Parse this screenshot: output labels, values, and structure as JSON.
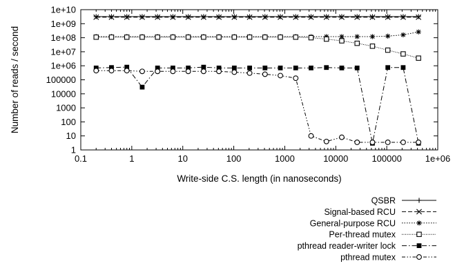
{
  "chart_data": {
    "type": "line",
    "xlabel": "Write-side C.S. length (in nanoseconds)",
    "ylabel": "Number of reads / second",
    "x_scale": "log",
    "y_scale": "log",
    "xlim": [
      0.1,
      1000000
    ],
    "ylim": [
      1,
      10000000000
    ],
    "grid": false,
    "legend_placement": "bottom-right, below plot",
    "x_tick_labels": [
      "0.1",
      "1",
      "10",
      "100",
      "1000",
      "10000",
      "100000",
      "1e+06"
    ],
    "y_tick_labels": [
      "1",
      "10",
      "100",
      "1000",
      "10000",
      "100000",
      "1e+06",
      "1e+07",
      "1e+08",
      "1e+09",
      "1e+10"
    ],
    "x": [
      0.2,
      0.4,
      0.8,
      1.6,
      3.2,
      6.4,
      12.8,
      25.6,
      51.2,
      102.4,
      204.8,
      409.6,
      819.2,
      1638.4,
      3276.8,
      6553.6,
      13107.2,
      26214.4,
      52428.8,
      104857.6,
      209715.2,
      419430.4
    ],
    "series": [
      {
        "name": "QSBR",
        "marker": "plus",
        "dash": "solid",
        "values": [
          3200000000,
          3200000000,
          3200000000,
          3200000000,
          3200000000,
          3200000000,
          3200000000,
          3200000000,
          3200000000,
          3200000000,
          3200000000,
          3200000000,
          3200000000,
          3200000000,
          3200000000,
          3200000000,
          3200000000,
          3200000000,
          3200000000,
          3200000000,
          3200000000,
          3200000000
        ]
      },
      {
        "name": "Signal-based RCU",
        "marker": "cross",
        "dash": "dashed",
        "values": [
          2900000000,
          2900000000,
          2900000000,
          2900000000,
          2900000000,
          2900000000,
          2900000000,
          2900000000,
          2900000000,
          2900000000,
          2900000000,
          2900000000,
          2900000000,
          2900000000,
          2900000000,
          2900000000,
          2900000000,
          2900000000,
          2900000000,
          2900000000,
          2900000000,
          2900000000
        ]
      },
      {
        "name": "General-purpose RCU",
        "marker": "star",
        "dash": "dotted",
        "values": [
          120000000,
          120000000,
          120000000,
          120000000,
          120000000,
          120000000,
          120000000,
          120000000,
          120000000,
          120000000,
          120000000,
          120000000,
          120000000,
          120000000,
          120000000,
          120000000,
          120000000,
          120000000,
          120000000,
          130000000,
          160000000,
          260000000
        ]
      },
      {
        "name": "Per-thread mutex",
        "marker": "square-open",
        "dash": "fine-dotted",
        "values": [
          110000000,
          110000000,
          110000000,
          110000000,
          110000000,
          110000000,
          110000000,
          110000000,
          110000000,
          110000000,
          110000000,
          110000000,
          110000000,
          110000000,
          100000000,
          80000000,
          60000000,
          40000000,
          25000000,
          13000000,
          7000000,
          3500000
        ]
      },
      {
        "name": "pthread reader-writer lock",
        "marker": "square-filled",
        "dash": "dash-dot",
        "values": [
          700000,
          750000,
          800000,
          30000,
          700000,
          700000,
          700000,
          800000,
          700000,
          700000,
          700000,
          700000,
          700000,
          700000,
          700000,
          750000,
          700000,
          700000,
          3,
          750000,
          750000,
          3
        ]
      },
      {
        "name": "pthread mutex",
        "marker": "circle-open",
        "dash": "dash-dot-dot",
        "values": [
          450000,
          450000,
          450000,
          400000,
          400000,
          400000,
          400000,
          400000,
          400000,
          350000,
          300000,
          250000,
          200000,
          130000,
          10,
          4,
          8,
          3.5,
          3.5,
          3.5,
          3.5,
          3.5
        ]
      }
    ]
  }
}
